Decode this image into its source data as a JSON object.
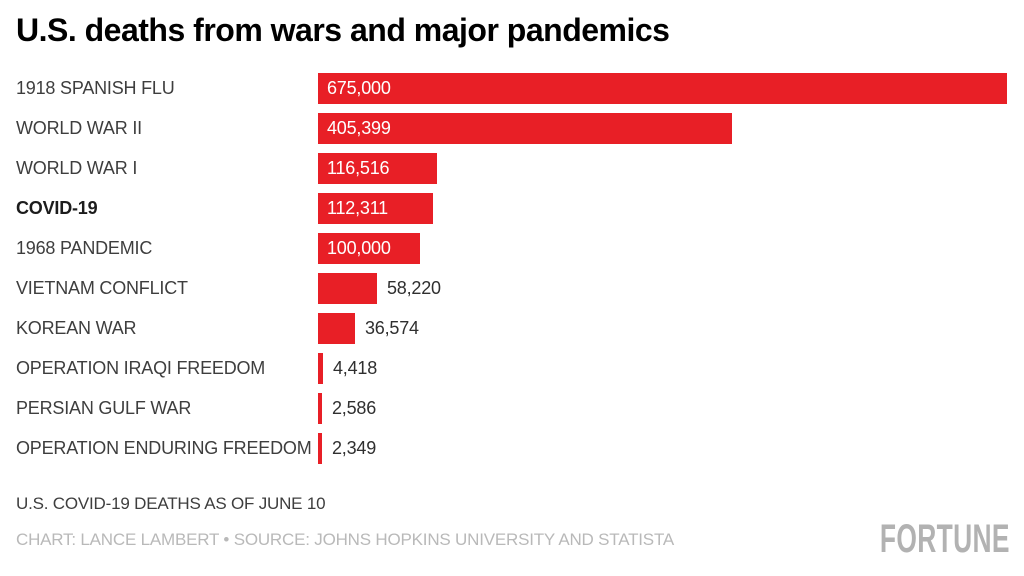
{
  "title": "U.S. deaths from wars and major pandemics",
  "chart_data": {
    "type": "bar",
    "orientation": "horizontal",
    "categories": [
      "1918 SPANISH FLU",
      "WORLD WAR II",
      "WORLD WAR I",
      "COVID-19",
      "1968 PANDEMIC",
      "VIETNAM CONFLICT",
      "KOREAN WAR",
      "OPERATION IRAQI FREEDOM",
      "PERSIAN GULF WAR",
      "OPERATION ENDURING FREEDOM"
    ],
    "values": [
      675000,
      405399,
      116516,
      112311,
      100000,
      58220,
      36574,
      4418,
      2586,
      2349
    ],
    "value_labels": [
      "675,000",
      "405,399",
      "116,516",
      "112,311",
      "100,000",
      "58,220",
      "36,574",
      "4,418",
      "2,586",
      "2,349"
    ],
    "bold_category": "COVID-19",
    "bar_color": "#E81F26",
    "inside_value_color": "#FFFFFF",
    "outside_value_color": "#2F2F2F",
    "xlim": [
      0,
      675000
    ],
    "grid": false,
    "legend": false
  },
  "footnote": "U.S. COVID-19 DEATHS AS OF JUNE 10",
  "credit": "CHART: LANCE LAMBERT • SOURCE: JOHNS HOPKINS UNIVERSITY AND STATISTA",
  "brand": "FORTUNE"
}
